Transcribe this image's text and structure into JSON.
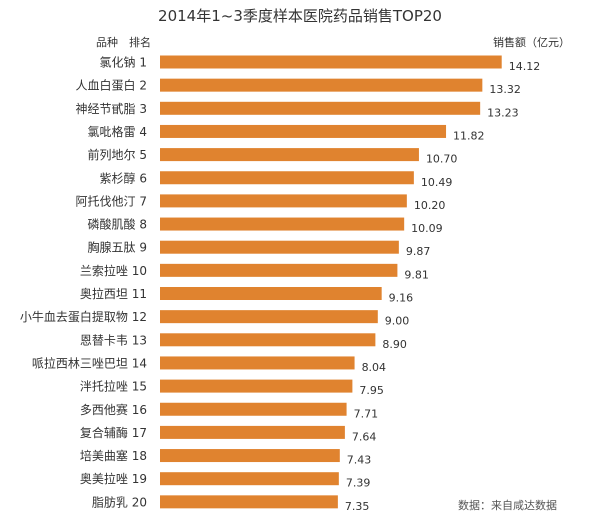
{
  "chart_data": {
    "type": "bar",
    "orientation": "horizontal",
    "title": "2014年1~3季度样本医院药品销售TOP20",
    "category_header": "品种　排名",
    "value_header": "销售额（亿元）",
    "source": "数据：来自咸达数据",
    "bar_color": "#E0832F",
    "categories": [
      "氯化钠 1",
      "人血白蛋白 2",
      "神经节甙脂 3",
      "氯吡格雷 4",
      "前列地尔 5",
      "紫杉醇 6",
      "阿托伐他汀 7",
      "磷酸肌酸 8",
      "胸腺五肽 9",
      "兰索拉唑 10",
      "奥拉西坦 11",
      "小牛血去蛋白提取物 12",
      "恩替卡韦 13",
      "哌拉西林三唑巴坦 14",
      "泮托拉唑 15",
      "多西他赛 16",
      "复合辅酶 17",
      "培美曲塞 18",
      "奥美拉唑 19",
      "脂肪乳 20"
    ],
    "values": [
      14.12,
      13.32,
      13.23,
      11.82,
      10.7,
      10.49,
      10.2,
      10.09,
      9.87,
      9.81,
      9.16,
      9.0,
      8.9,
      8.04,
      7.95,
      7.71,
      7.64,
      7.43,
      7.39,
      7.35
    ],
    "value_labels": [
      "14.12",
      "13.32",
      "13.23",
      "11.82",
      "10.70",
      "10.49",
      "10.20",
      "10.09",
      "9.87",
      "9.81",
      "9.16",
      "9.00",
      "8.90",
      "8.04",
      "7.95",
      "7.71",
      "7.64",
      "7.43",
      "7.39",
      "7.35"
    ],
    "xlim": [
      0,
      16
    ],
    "grid": false,
    "legend": "none"
  }
}
